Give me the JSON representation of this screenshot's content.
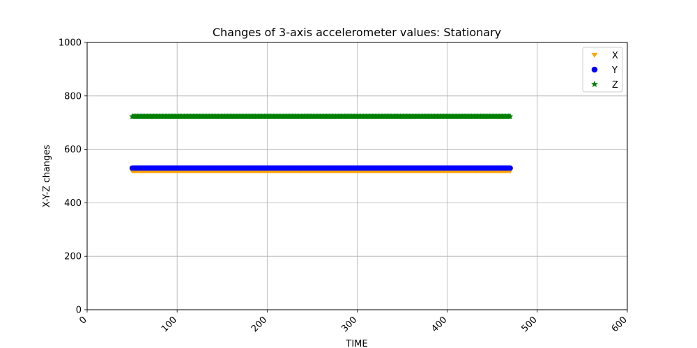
{
  "chart_data": {
    "type": "scatter",
    "title": "Changes of 3-axis accelerometer values: Stationary",
    "xlabel": "TIME",
    "ylabel": "X-Y-Z changes",
    "xlim": [
      0,
      600
    ],
    "ylim": [
      0,
      1000
    ],
    "xticks": [
      0,
      100,
      200,
      300,
      400,
      500,
      600
    ],
    "yticks": [
      0,
      200,
      400,
      600,
      800,
      1000
    ],
    "grid": true,
    "legend_position": "top-right",
    "x_range": [
      50,
      470
    ],
    "x_step": 1,
    "series": [
      {
        "name": "X",
        "marker": "triangle-down",
        "color": "#ffa500",
        "value": 519
      },
      {
        "name": "Y",
        "marker": "circle",
        "color": "#0000ff",
        "value": 530
      },
      {
        "name": "Z",
        "marker": "star",
        "color": "#008000",
        "value": 723
      }
    ]
  }
}
